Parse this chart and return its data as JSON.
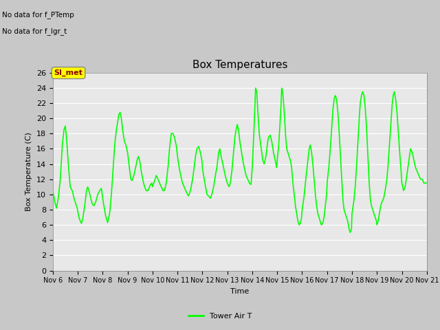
{
  "title": "Box Temperatures",
  "xlabel": "Time",
  "ylabel": "Box Temperature (C)",
  "no_data_text_1": "No data for f_PTemp",
  "no_data_text_2": "No data for f_lgr_t",
  "si_met_label": "SI_met",
  "legend_label": "Tower Air T",
  "line_color": "#00FF00",
  "fig_facecolor": "#C8C8C8",
  "ax_facecolor": "#E8E8E8",
  "ylim": [
    0,
    26
  ],
  "yticks": [
    0,
    2,
    4,
    6,
    8,
    10,
    12,
    14,
    16,
    18,
    20,
    22,
    24,
    26
  ],
  "xlim": [
    6,
    21
  ],
  "xtick_positions": [
    6,
    7,
    8,
    9,
    10,
    11,
    12,
    13,
    14,
    15,
    16,
    17,
    18,
    19,
    20,
    21
  ],
  "xtick_labels": [
    "Nov 6",
    "Nov 7",
    "Nov 8",
    "Nov 9",
    "Nov 10",
    "Nov 11",
    "Nov 12",
    "Nov 13",
    "Nov 14",
    "Nov 15",
    "Nov 16",
    "Nov 17",
    "Nov 18",
    "Nov 19",
    "Nov 20",
    "Nov 21"
  ]
}
